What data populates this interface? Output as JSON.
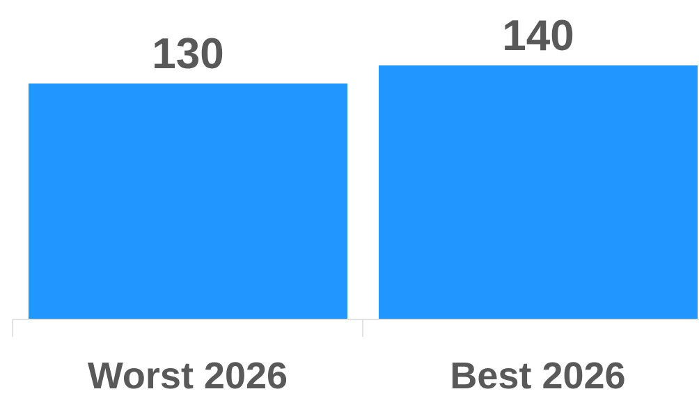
{
  "chart_data": {
    "type": "bar",
    "categories": [
      "Worst 2026",
      "Best 2026"
    ],
    "values": [
      130,
      140
    ],
    "data_labels": [
      "130",
      "140"
    ],
    "title": "",
    "xlabel": "",
    "ylabel": "",
    "ylim": [
      0,
      140
    ],
    "grid": false,
    "legend": "none"
  },
  "colors": {
    "bar": "#2196FF",
    "text": "#595959",
    "axis": "#d9d9d9"
  }
}
